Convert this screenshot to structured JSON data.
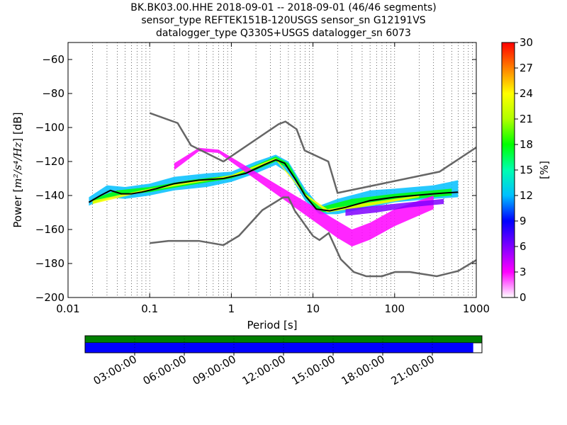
{
  "title_lines": [
    "BK.BK03.00.HHE   2018-09-01 -- 2018-09-01  (46/46 segments)",
    "sensor_type REFTEK151B-120USGS sensor_sn G12191VS",
    "datalogger_type Q330S+USGS datalogger_sn 6073"
  ],
  "chart_data": {
    "type": "heatmap",
    "xlabel": "Period [s]",
    "ylabel_prefix": "Power [",
    "ylabel_units": "m²/s⁴/Hz",
    "ylabel_suffix": "] [dB]",
    "xscale": "log",
    "xlim": [
      0.01,
      1000
    ],
    "ylim": [
      -200,
      -50
    ],
    "x_ticks": [
      0.01,
      0.1,
      1,
      10,
      100,
      1000
    ],
    "x_tick_labels": [
      "0.01",
      "0.1",
      "1",
      "10",
      "100",
      "1000"
    ],
    "y_ticks": [
      -200,
      -180,
      -160,
      -140,
      -120,
      -100,
      -80,
      -60
    ],
    "y_tick_labels": [
      "−200",
      "−180",
      "−160",
      "−140",
      "−120",
      "−100",
      "−80",
      "−60"
    ],
    "grid": "dotted vertical at log minor ticks",
    "colorbar": {
      "label": "[%]",
      "range": [
        0,
        30
      ],
      "ticks": [
        0,
        3,
        6,
        9,
        12,
        15,
        18,
        21,
        24,
        27,
        30
      ],
      "tick_labels": [
        "0",
        "3",
        "6",
        "9",
        "12",
        "15",
        "18",
        "21",
        "24",
        "27",
        "30"
      ],
      "colors": [
        "#ffffff",
        "#ff00ff",
        "#8000ff",
        "#0000ff",
        "#00c0ff",
        "#00ffb0",
        "#00ff00",
        "#b0ff00",
        "#ffff00",
        "#ff8000",
        "#ff0000"
      ]
    },
    "high_noise_model": [
      [
        0.1,
        -91.5
      ],
      [
        0.22,
        -97.4
      ],
      [
        0.32,
        -110.5
      ],
      [
        0.8,
        -120
      ],
      [
        3.8,
        -98
      ],
      [
        4.6,
        -96.5
      ],
      [
        6.3,
        -101
      ],
      [
        7.9,
        -113.5
      ],
      [
        15.4,
        -120
      ],
      [
        20,
        -138.5
      ],
      [
        354.8,
        -126
      ],
      [
        10000,
        -80
      ]
    ],
    "low_noise_model": [
      [
        0.1,
        -168
      ],
      [
        0.17,
        -166.7
      ],
      [
        0.4,
        -166.7
      ],
      [
        0.8,
        -169.2
      ],
      [
        1.24,
        -163.7
      ],
      [
        2.4,
        -148.6
      ],
      [
        4.3,
        -141.1
      ],
      [
        5,
        -141.1
      ],
      [
        6,
        -149
      ],
      [
        10,
        -163.8
      ],
      [
        12,
        -166.2
      ],
      [
        15.6,
        -162.1
      ],
      [
        21.9,
        -177.5
      ],
      [
        31.6,
        -185
      ],
      [
        45,
        -187.5
      ],
      [
        70,
        -187.5
      ],
      [
        101,
        -185
      ],
      [
        154,
        -185
      ],
      [
        328,
        -187.5
      ],
      [
        600,
        -184.4
      ],
      [
        1000,
        -178
      ]
    ],
    "mode_curve": [
      [
        0.018,
        -144
      ],
      [
        0.025,
        -140
      ],
      [
        0.033,
        -137
      ],
      [
        0.045,
        -139
      ],
      [
        0.06,
        -139
      ],
      [
        0.08,
        -138
      ],
      [
        0.12,
        -136
      ],
      [
        0.2,
        -133
      ],
      [
        0.4,
        -131
      ],
      [
        0.8,
        -130
      ],
      [
        1.5,
        -127
      ],
      [
        2.5,
        -122
      ],
      [
        3.5,
        -119
      ],
      [
        4.5,
        -121
      ],
      [
        6,
        -130
      ],
      [
        8,
        -140
      ],
      [
        11,
        -148
      ],
      [
        16,
        -149
      ],
      [
        25,
        -147
      ],
      [
        50,
        -143
      ],
      [
        100,
        -141
      ],
      [
        300,
        -139
      ],
      [
        600,
        -138
      ]
    ],
    "density_bands": [
      {
        "color": "#00c0ff",
        "points": [
          [
            0.018,
            -146,
            -141
          ],
          [
            0.03,
            -141,
            -134
          ],
          [
            0.05,
            -142,
            -135
          ],
          [
            0.1,
            -140,
            -133
          ],
          [
            0.2,
            -137,
            -129
          ],
          [
            0.5,
            -135,
            -127
          ],
          [
            1,
            -132,
            -126
          ],
          [
            2,
            -127,
            -120
          ],
          [
            3.5,
            -122,
            -116
          ],
          [
            5,
            -127,
            -120
          ],
          [
            8,
            -143,
            -136
          ],
          [
            12,
            -151,
            -146
          ],
          [
            20,
            -151,
            -142
          ],
          [
            50,
            -147,
            -137
          ],
          [
            100,
            -144,
            -136
          ],
          [
            300,
            -142,
            -134
          ],
          [
            600,
            -141,
            -131
          ]
        ]
      },
      {
        "color": "#00ff00",
        "points": [
          [
            0.02,
            -145,
            -142
          ],
          [
            0.04,
            -140,
            -137
          ],
          [
            0.1,
            -138,
            -135
          ],
          [
            0.3,
            -134,
            -131
          ],
          [
            1,
            -130,
            -128
          ],
          [
            2,
            -125,
            -122
          ],
          [
            3.5,
            -120,
            -117
          ],
          [
            5,
            -124,
            -121
          ],
          [
            8,
            -141,
            -138
          ],
          [
            12,
            -150,
            -147
          ],
          [
            30,
            -148,
            -142
          ],
          [
            100,
            -143,
            -139
          ],
          [
            500,
            -140,
            -136
          ]
        ]
      },
      {
        "color": "#ffff00",
        "points": [
          [
            0.02,
            -145,
            -143
          ],
          [
            0.1,
            -137,
            -136
          ],
          [
            1,
            -129,
            -128
          ],
          [
            3.5,
            -119,
            -118
          ],
          [
            8,
            -140,
            -139
          ],
          [
            15,
            -150,
            -148
          ],
          [
            50,
            -146,
            -144
          ],
          [
            200,
            -141,
            -140
          ]
        ]
      },
      {
        "color": "#ff00ff",
        "points": [
          [
            0.2,
            -125,
            -121
          ],
          [
            0.4,
            -114,
            -112
          ],
          [
            0.7,
            -115,
            -113
          ],
          [
            20,
            -165,
            -155
          ],
          [
            30,
            -170,
            -160
          ],
          [
            50,
            -166,
            -156
          ],
          [
            100,
            -158,
            -148
          ],
          [
            300,
            -148,
            -140
          ]
        ]
      },
      {
        "color": "#8000ff",
        "points": [
          [
            25,
            -152,
            -148
          ],
          [
            60,
            -150,
            -146
          ],
          [
            150,
            -147,
            -144
          ],
          [
            400,
            -145,
            -142
          ]
        ]
      }
    ],
    "time_axis_labels": [
      "03:00:00",
      "06:00:00",
      "09:00:00",
      "12:00:00",
      "15:00:00",
      "18:00:00",
      "21:00:00"
    ],
    "data_availability_colors": {
      "row1": "#008000",
      "row2": "#0000ff"
    },
    "coverage_fraction": 0.978
  }
}
